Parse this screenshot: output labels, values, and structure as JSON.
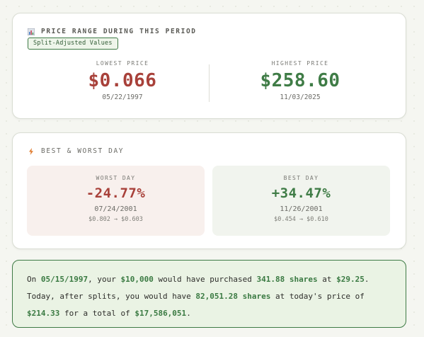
{
  "price_range": {
    "icon": "bar-chart-icon",
    "title": "PRICE RANGE DURING THIS PERIOD",
    "badge": "Split-Adjusted Values",
    "lowest": {
      "label": "LOWEST PRICE",
      "value": "$0.066",
      "date": "05/22/1997"
    },
    "highest": {
      "label": "HIGHEST PRICE",
      "value": "$258.60",
      "date": "11/03/2025"
    }
  },
  "best_worst": {
    "icon": "lightning-icon",
    "title": "BEST & WORST DAY",
    "worst": {
      "label": "WORST DAY",
      "pct": "-24.77%",
      "date": "07/24/2001",
      "move": "$0.802 → $0.603"
    },
    "best": {
      "label": "BEST DAY",
      "pct": "+34.47%",
      "date": "11/26/2001",
      "move": "$0.454 → $0.610"
    }
  },
  "summary": {
    "t1": "On ",
    "date": "05/15/1997",
    "t2": ", your ",
    "amount": "$10,000",
    "t3": " would have purchased ",
    "shares": "341.88 shares",
    "t4": " at ",
    "buy_price": "$29.25",
    "t5": ". Today, after splits, you would have ",
    "current_shares": "82,051.28 shares",
    "t6": " at today's price of ",
    "current_price": "$214.33",
    "t7": " for a total of ",
    "total": "$17,586,051",
    "t8": "."
  },
  "colors": {
    "red": "#a8413a",
    "green": "#3f7c46",
    "accent": "#3e7a45"
  }
}
